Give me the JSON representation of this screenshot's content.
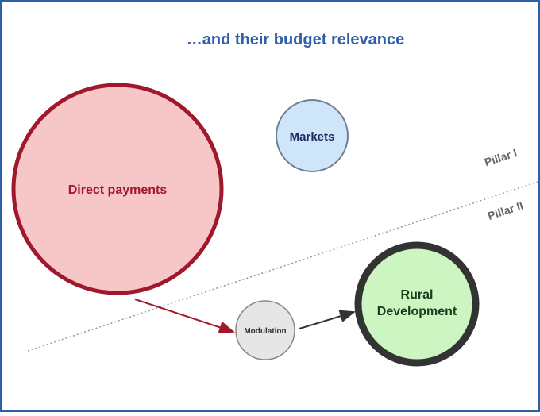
{
  "title": "…and their budget relevance",
  "nodes": [
    {
      "label": "Direct payments"
    },
    {
      "label": "Markets"
    },
    {
      "label": "Modulation"
    },
    {
      "label_lines": [
        "Rural",
        "Development"
      ]
    }
  ],
  "pillars": [
    "Pillar I",
    "Pillar II"
  ]
}
